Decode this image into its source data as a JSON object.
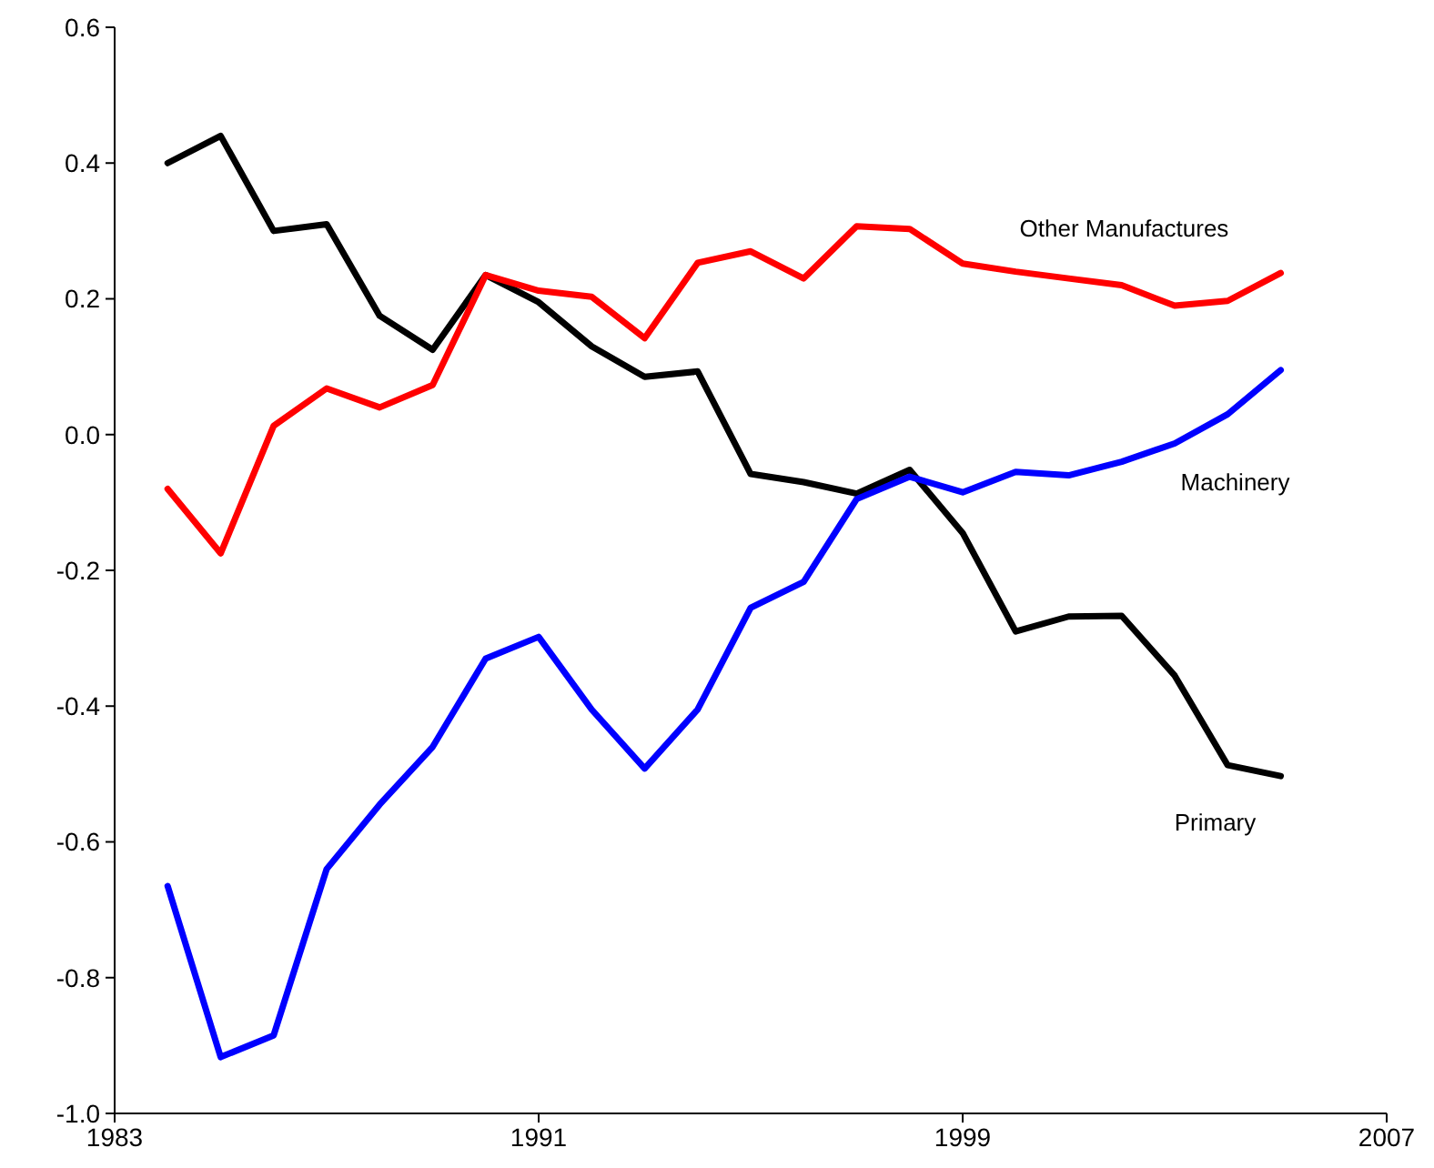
{
  "chart_data": {
    "type": "line",
    "x": [
      1984,
      1985,
      1986,
      1987,
      1988,
      1989,
      1990,
      1991,
      1992,
      1993,
      1994,
      1995,
      1996,
      1997,
      1998,
      1999,
      2000,
      2001,
      2002,
      2003,
      2004,
      2005
    ],
    "series": [
      {
        "name": "Primary",
        "color": "#000000",
        "values": [
          0.4,
          0.44,
          0.3,
          0.31,
          0.175,
          0.125,
          0.235,
          0.195,
          0.13,
          0.085,
          0.093,
          -0.058,
          -0.07,
          -0.087,
          -0.052,
          -0.145,
          -0.29,
          -0.268,
          -0.267,
          -0.355,
          -0.487,
          -0.503
        ]
      },
      {
        "name": "Other Manufactures",
        "color": "#ff0000",
        "values": [
          -0.08,
          -0.175,
          0.013,
          0.068,
          0.04,
          0.073,
          0.235,
          0.212,
          0.203,
          0.142,
          0.253,
          0.27,
          0.23,
          0.307,
          0.303,
          0.252,
          0.24,
          0.23,
          0.22,
          0.19,
          0.197,
          0.238
        ]
      },
      {
        "name": "Machinery",
        "color": "#0000ff",
        "values": [
          -0.665,
          -0.917,
          -0.885,
          -0.64,
          -0.545,
          -0.46,
          -0.33,
          -0.298,
          -0.405,
          -0.492,
          -0.405,
          -0.255,
          -0.217,
          -0.095,
          -0.062,
          -0.085,
          -0.055,
          -0.06,
          -0.04,
          -0.013,
          0.03,
          0.095
        ]
      }
    ],
    "xlim": [
      1983,
      2007
    ],
    "xticks": [
      1983,
      1991,
      1999,
      2007
    ],
    "ylim": [
      -1.0,
      0.6
    ],
    "yticks": [
      {
        "value": -1.0,
        "label": "-1.0"
      },
      -0.8,
      -0.6,
      -0.4,
      -0.2,
      {
        "value": 0,
        "label": "0.0"
      },
      0.2,
      0.4,
      0.6
    ],
    "grid": false,
    "marker": "none",
    "line_style": "solid"
  }
}
